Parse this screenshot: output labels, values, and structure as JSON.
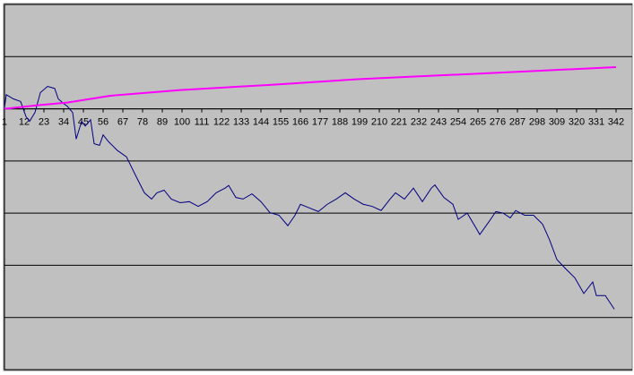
{
  "chart_data": {
    "type": "line",
    "xlim": [
      1,
      351
    ],
    "xticks": [
      1,
      12,
      23,
      34,
      45,
      56,
      67,
      78,
      89,
      100,
      111,
      122,
      133,
      144,
      155,
      166,
      177,
      188,
      199,
      210,
      221,
      232,
      243,
      254,
      265,
      276,
      287,
      298,
      309,
      320,
      331,
      342
    ],
    "ylim": [
      -5,
      2
    ],
    "yticks": [
      -5,
      -4,
      -3,
      -2,
      -1,
      0,
      1,
      2
    ],
    "grid": true,
    "series": [
      {
        "color": "#000080",
        "x": [
          1,
          2,
          6,
          10,
          13,
          15,
          18,
          21,
          25,
          29,
          31,
          34,
          36,
          39,
          41,
          44,
          46,
          49,
          51,
          54,
          56,
          59,
          64,
          69,
          74,
          79,
          83,
          86,
          90,
          94,
          99,
          104,
          109,
          114,
          119,
          124,
          126,
          130,
          134,
          139,
          144,
          149,
          154,
          159,
          163,
          166,
          171,
          176,
          181,
          186,
          191,
          196,
          201,
          206,
          211,
          216,
          219,
          224,
          229,
          234,
          239,
          241,
          246,
          251,
          254,
          259,
          264,
          266,
          271,
          275,
          279,
          283,
          286,
          291,
          296,
          301,
          305,
          309,
          314,
          319,
          324,
          329,
          331,
          336,
          341
        ],
        "values": [
          0.02,
          0.27,
          0.19,
          0.14,
          -0.15,
          -0.24,
          -0.07,
          0.31,
          0.43,
          0.39,
          0.19,
          0.1,
          0.05,
          -0.07,
          -0.58,
          -0.24,
          -0.33,
          -0.21,
          -0.67,
          -0.7,
          -0.5,
          -0.63,
          -0.8,
          -0.92,
          -1.27,
          -1.61,
          -1.73,
          -1.61,
          -1.56,
          -1.73,
          -1.8,
          -1.78,
          -1.87,
          -1.78,
          -1.61,
          -1.52,
          -1.47,
          -1.7,
          -1.73,
          -1.63,
          -1.78,
          -1.99,
          -2.04,
          -2.24,
          -2.04,
          -1.83,
          -1.9,
          -1.97,
          -1.83,
          -1.73,
          -1.61,
          -1.73,
          -1.83,
          -1.87,
          -1.95,
          -1.73,
          -1.61,
          -1.73,
          -1.52,
          -1.78,
          -1.52,
          -1.46,
          -1.7,
          -1.83,
          -2.12,
          -2.0,
          -2.29,
          -2.41,
          -2.17,
          -1.97,
          -2.0,
          -2.09,
          -1.95,
          -2.04,
          -2.04,
          -2.21,
          -2.52,
          -2.89,
          -3.07,
          -3.24,
          -3.54,
          -3.32,
          -3.58,
          -3.58,
          -3.84
        ]
      },
      {
        "color": "#ff00ff",
        "x": [
          1,
          20,
          36,
          60,
          99,
          150,
          199,
          250,
          300,
          342
        ],
        "values": [
          0,
          0.07,
          0.12,
          0.25,
          0.36,
          0.46,
          0.57,
          0.65,
          0.73,
          0.8
        ]
      }
    ]
  }
}
